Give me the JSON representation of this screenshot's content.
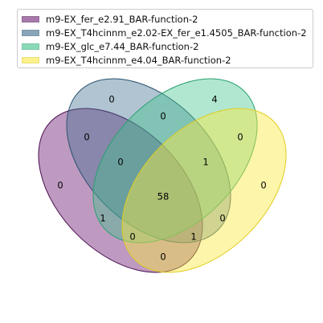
{
  "sets": [
    {
      "name": "m9-EX_fer_e2.91_BAR-function-2",
      "fill": "#6f1f74",
      "stroke": "#4a1050",
      "alpha": 0.45
    },
    {
      "name": "m9-EX_T4hcinnm_e2.02-EX_fer_e1.4505_BAR-function-2",
      "fill": "#3a6b8c",
      "stroke": "#2c5470",
      "alpha": 0.4
    },
    {
      "name": "m9-EX_glc_e7.44_BAR-function-2",
      "fill": "#3cc48a",
      "stroke": "#2aa070",
      "alpha": 0.4
    },
    {
      "name": "m9-EX_T4hcinnm_e4.04_BAR-function-2",
      "fill": "#fbe840",
      "stroke": "#e0cc20",
      "alpha": 0.45
    }
  ],
  "regions": [
    {
      "sets": "B",
      "value": "0"
    },
    {
      "sets": "C",
      "value": "4"
    },
    {
      "sets": "AB",
      "value": "0"
    },
    {
      "sets": "BC",
      "value": "0"
    },
    {
      "sets": "CD",
      "value": "0"
    },
    {
      "sets": "A",
      "value": "0"
    },
    {
      "sets": "ABC",
      "value": "0"
    },
    {
      "sets": "BCD",
      "value": "1"
    },
    {
      "sets": "D",
      "value": "0"
    },
    {
      "sets": "ABCD",
      "value": "58"
    },
    {
      "sets": "ABD",
      "value": "1"
    },
    {
      "sets": "ACD",
      "value": "0"
    },
    {
      "sets": "AC",
      "value": "0"
    },
    {
      "sets": "BD",
      "value": "1"
    },
    {
      "sets": "AD",
      "value": "0"
    }
  ]
}
